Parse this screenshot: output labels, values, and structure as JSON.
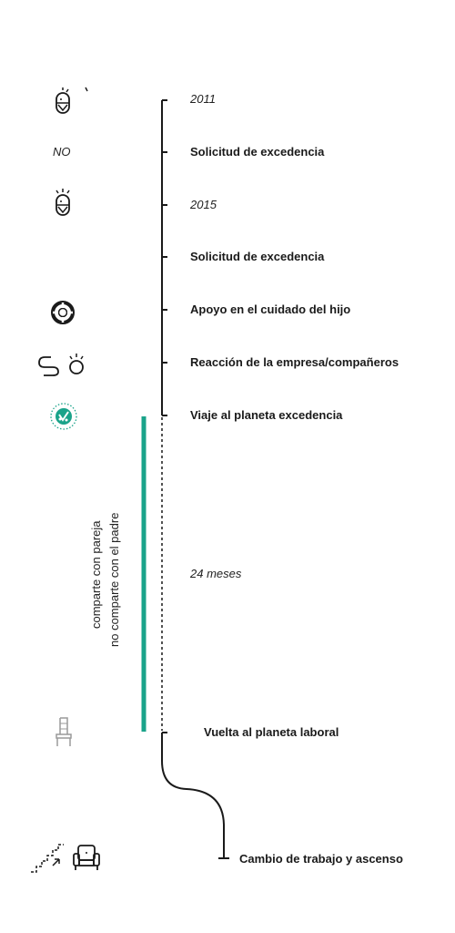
{
  "events": [
    {
      "label": "2011",
      "style": "italic"
    },
    {
      "label": "Solicitud de excedencia",
      "style": "bold"
    },
    {
      "label": "2015",
      "style": "italic"
    },
    {
      "label": "Solicitud de excedencia",
      "style": "bold"
    },
    {
      "label": "Apoyo en el cuidado del hijo",
      "style": "bold"
    },
    {
      "label": "Reacción de la empresa/compañeros",
      "style": "bold"
    },
    {
      "label": "Viaje al planeta excedencia",
      "style": "bold"
    },
    {
      "label": "24 meses",
      "style": "italic"
    },
    {
      "label": "Vuelta al planeta laboral",
      "style": "bold"
    },
    {
      "label": "Cambio de trabajo y ascenso",
      "style": "bold"
    }
  ],
  "side_labels": {
    "no_label": "NO",
    "share_partner": "comparte con pareja",
    "not_share_father": "no comparte  con el padre"
  },
  "icons": {
    "baby_2011": "baby-icon",
    "baby_2015": "baby-icon",
    "lifebuoy": "lifebuoy-icon",
    "reaction": "reaction-icon",
    "planet": "planet-excedencia-icon",
    "chair": "chair-icon",
    "stairs": "stairs-icon",
    "armchair": "armchair-icon"
  },
  "colors": {
    "line": "#1a1a1a",
    "accent": "#1aa38a",
    "icon_grey": "#9a9a9a"
  }
}
